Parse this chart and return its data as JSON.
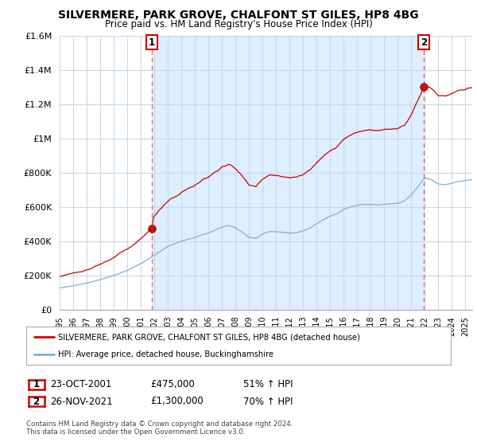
{
  "title": "SILVERMERE, PARK GROVE, CHALFONT ST GILES, HP8 4BG",
  "subtitle": "Price paid vs. HM Land Registry's House Price Index (HPI)",
  "ylim": [
    0,
    1600000
  ],
  "yticks": [
    0,
    200000,
    400000,
    600000,
    800000,
    1000000,
    1200000,
    1400000,
    1600000
  ],
  "ytick_labels": [
    "£0",
    "£200K",
    "£400K",
    "£600K",
    "£800K",
    "£1M",
    "£1.2M",
    "£1.4M",
    "£1.6M"
  ],
  "xlim_start": 1995.0,
  "xlim_end": 2025.5,
  "sale1_x": 2001.81,
  "sale1_y": 475000,
  "sale2_x": 2021.9,
  "sale2_y": 1300000,
  "line1_color": "#cc0000",
  "line2_color": "#7bb0d8",
  "fill_color": "#ddeeff",
  "marker_color": "#990000",
  "vline_color": "#e87070",
  "legend_label1": "SILVERMERE, PARK GROVE, CHALFONT ST GILES, HP8 4BG (detached house)",
  "legend_label2": "HPI: Average price, detached house, Buckinghamshire",
  "note1_date": "23-OCT-2001",
  "note1_price": "£475,000",
  "note1_hpi": "51% ↑ HPI",
  "note2_date": "26-NOV-2021",
  "note2_price": "£1,300,000",
  "note2_hpi": "70% ↑ HPI",
  "footer": "Contains HM Land Registry data © Crown copyright and database right 2024.\nThis data is licensed under the Open Government Licence v3.0.",
  "background_color": "#ffffff",
  "plot_bg_color": "#ffffff",
  "grid_color": "#c8d8e8"
}
